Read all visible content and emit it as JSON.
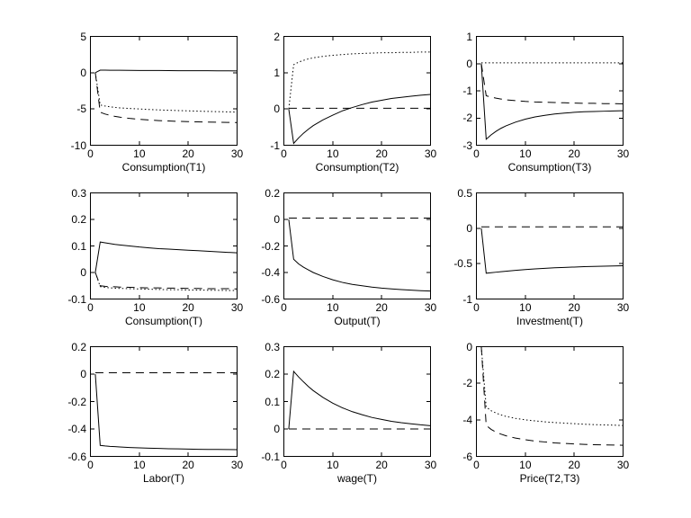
{
  "figure": {
    "background": "#ffffff",
    "line_color": "#000000",
    "layout": "3x3 grid of impulse-response line plots, MATLAB style",
    "x_axis_shared": {
      "min": 0,
      "max": 30,
      "tick_labels": [
        "0",
        "10",
        "20",
        "30"
      ]
    }
  },
  "chart_data": [
    {
      "type": "line",
      "title": "Consumption(T1)",
      "xlabel": "Consumption(T1)",
      "xlim": [
        0,
        30
      ],
      "xticks": [
        "0",
        "10",
        "20",
        "30"
      ],
      "ylim": [
        -10,
        5
      ],
      "yticks": [
        "5",
        "0",
        "-5",
        "-10"
      ],
      "legend": false,
      "series": [
        {
          "name": "solid",
          "style": "solid",
          "x": [
            1,
            2,
            3,
            4,
            5,
            6,
            8,
            10,
            12,
            14,
            16,
            18,
            20,
            22,
            24,
            26,
            28,
            30
          ],
          "y": [
            0,
            0.35,
            0.35,
            0.34,
            0.34,
            0.33,
            0.32,
            0.31,
            0.3,
            0.3,
            0.29,
            0.28,
            0.28,
            0.27,
            0.27,
            0.26,
            0.26,
            0.25
          ]
        },
        {
          "name": "dotted",
          "style": "dotted",
          "x": [
            1,
            2,
            3,
            4,
            5,
            6,
            8,
            10,
            12,
            14,
            16,
            18,
            20,
            22,
            24,
            26,
            28,
            30
          ],
          "y": [
            0,
            -4.45,
            -4.6,
            -4.7,
            -4.78,
            -4.85,
            -4.93,
            -5.0,
            -5.07,
            -5.13,
            -5.18,
            -5.22,
            -5.26,
            -5.3,
            -5.34,
            -5.37,
            -5.4,
            -5.43
          ]
        },
        {
          "name": "dashed",
          "style": "dashed",
          "x": [
            1,
            2,
            3,
            4,
            5,
            6,
            8,
            10,
            12,
            14,
            16,
            18,
            20,
            22,
            24,
            26,
            28,
            30
          ],
          "y": [
            0,
            -5.45,
            -5.7,
            -5.88,
            -6.02,
            -6.13,
            -6.3,
            -6.42,
            -6.52,
            -6.6,
            -6.66,
            -6.71,
            -6.75,
            -6.78,
            -6.81,
            -6.83,
            -6.85,
            -6.87
          ]
        }
      ]
    },
    {
      "type": "line",
      "title": "Consumption(T2)",
      "xlabel": "Consumption(T2)",
      "xlim": [
        0,
        30
      ],
      "xticks": [
        "0",
        "10",
        "20",
        "30"
      ],
      "ylim": [
        -1,
        2
      ],
      "yticks": [
        "2",
        "1",
        "0",
        "-1"
      ],
      "legend": false,
      "series": [
        {
          "name": "dotted",
          "style": "dotted",
          "x": [
            1,
            2,
            3,
            4,
            5,
            6,
            8,
            10,
            12,
            14,
            16,
            18,
            20,
            22,
            24,
            26,
            28,
            30
          ],
          "y": [
            0,
            1.22,
            1.29,
            1.34,
            1.38,
            1.41,
            1.45,
            1.48,
            1.5,
            1.52,
            1.53,
            1.54,
            1.55,
            1.55,
            1.56,
            1.56,
            1.57,
            1.57
          ]
        },
        {
          "name": "solid",
          "style": "solid",
          "x": [
            1,
            2,
            3,
            4,
            5,
            6,
            8,
            10,
            12,
            14,
            16,
            18,
            20,
            22,
            24,
            26,
            28,
            30
          ],
          "y": [
            0,
            -0.95,
            -0.8,
            -0.67,
            -0.56,
            -0.46,
            -0.3,
            -0.17,
            -0.05,
            0.04,
            0.12,
            0.19,
            0.24,
            0.29,
            0.32,
            0.35,
            0.38,
            0.4
          ]
        },
        {
          "name": "dashed",
          "style": "dashed",
          "x": [
            1,
            30
          ],
          "y": [
            0.02,
            0.02
          ]
        }
      ]
    },
    {
      "type": "line",
      "title": "Consumption(T3)",
      "xlabel": "Consumption(T3)",
      "xlim": [
        0,
        30
      ],
      "xticks": [
        "0",
        "10",
        "20",
        "30"
      ],
      "ylim": [
        -3,
        1
      ],
      "yticks": [
        "1",
        "0",
        "-1",
        "-2",
        "-3"
      ],
      "legend": false,
      "series": [
        {
          "name": "dotted",
          "style": "dotted",
          "x": [
            1,
            30
          ],
          "y": [
            0.03,
            0.03
          ]
        },
        {
          "name": "dashed",
          "style": "dashed",
          "x": [
            1,
            2,
            3,
            4,
            5,
            6,
            8,
            10,
            12,
            14,
            16,
            18,
            20,
            22,
            24,
            26,
            28,
            30
          ],
          "y": [
            0,
            -1.18,
            -1.23,
            -1.27,
            -1.3,
            -1.33,
            -1.36,
            -1.39,
            -1.41,
            -1.42,
            -1.43,
            -1.44,
            -1.45,
            -1.46,
            -1.46,
            -1.47,
            -1.47,
            -1.48
          ]
        },
        {
          "name": "solid",
          "style": "solid",
          "x": [
            1,
            2,
            3,
            4,
            5,
            6,
            8,
            10,
            12,
            14,
            16,
            18,
            20,
            22,
            24,
            26,
            28,
            30
          ],
          "y": [
            0,
            -2.78,
            -2.62,
            -2.49,
            -2.38,
            -2.29,
            -2.15,
            -2.04,
            -1.96,
            -1.9,
            -1.85,
            -1.82,
            -1.79,
            -1.77,
            -1.76,
            -1.75,
            -1.74,
            -1.73
          ]
        }
      ]
    },
    {
      "type": "line",
      "title": "Consumption(T)",
      "xlabel": "Consumption(T)",
      "xlim": [
        0,
        30
      ],
      "xticks": [
        "0",
        "10",
        "20",
        "30"
      ],
      "ylim": [
        -0.1,
        0.3
      ],
      "yticks": [
        "0.3",
        "0.2",
        "0.1",
        "0",
        "-0.1"
      ],
      "legend": false,
      "series": [
        {
          "name": "solid",
          "style": "solid",
          "x": [
            1,
            2,
            3,
            4,
            5,
            6,
            8,
            10,
            12,
            14,
            16,
            18,
            20,
            22,
            24,
            26,
            28,
            30
          ],
          "y": [
            0,
            0.115,
            0.112,
            0.109,
            0.106,
            0.104,
            0.1,
            0.096,
            0.093,
            0.09,
            0.088,
            0.086,
            0.084,
            0.082,
            0.08,
            0.078,
            0.076,
            0.074
          ]
        },
        {
          "name": "dashed",
          "style": "dashed",
          "x": [
            1,
            2,
            3,
            4,
            5,
            6,
            8,
            10,
            12,
            14,
            16,
            18,
            20,
            22,
            24,
            26,
            28,
            30
          ],
          "y": [
            0,
            -0.05,
            -0.052,
            -0.053,
            -0.054,
            -0.055,
            -0.056,
            -0.057,
            -0.058,
            -0.058,
            -0.059,
            -0.059,
            -0.06,
            -0.06,
            -0.061,
            -0.061,
            -0.061,
            -0.062
          ]
        },
        {
          "name": "dotted",
          "style": "dotted",
          "x": [
            1,
            2,
            3,
            4,
            5,
            6,
            8,
            10,
            12,
            14,
            16,
            18,
            20,
            22,
            24,
            26,
            28,
            30
          ],
          "y": [
            0,
            -0.053,
            -0.056,
            -0.058,
            -0.059,
            -0.06,
            -0.061,
            -0.062,
            -0.063,
            -0.064,
            -0.065,
            -0.065,
            -0.066,
            -0.066,
            -0.067,
            -0.067,
            -0.068,
            -0.068
          ]
        }
      ]
    },
    {
      "type": "line",
      "title": "Output(T)",
      "xlabel": "Output(T)",
      "xlim": [
        0,
        30
      ],
      "xticks": [
        "0",
        "10",
        "20",
        "30"
      ],
      "ylim": [
        -0.6,
        0.2
      ],
      "yticks": [
        "0.2",
        "0",
        "-0.2",
        "-0.4",
        "-0.6"
      ],
      "legend": false,
      "series": [
        {
          "name": "dashed",
          "style": "dashed",
          "x": [
            1,
            30
          ],
          "y": [
            0.01,
            0.01
          ]
        },
        {
          "name": "solid",
          "style": "solid",
          "x": [
            1,
            2,
            3,
            4,
            5,
            6,
            8,
            10,
            12,
            14,
            16,
            18,
            20,
            22,
            24,
            26,
            28,
            30
          ],
          "y": [
            0,
            -0.3,
            -0.335,
            -0.36,
            -0.38,
            -0.4,
            -0.43,
            -0.455,
            -0.475,
            -0.49,
            -0.5,
            -0.51,
            -0.518,
            -0.524,
            -0.529,
            -0.533,
            -0.537,
            -0.54
          ]
        }
      ]
    },
    {
      "type": "line",
      "title": "Investment(T)",
      "xlabel": "Investment(T)",
      "xlim": [
        0,
        30
      ],
      "xticks": [
        "0",
        "10",
        "20",
        "30"
      ],
      "ylim": [
        -1,
        0.5
      ],
      "yticks": [
        "0.5",
        "0",
        "-0.5",
        "-1"
      ],
      "legend": false,
      "series": [
        {
          "name": "dashed",
          "style": "dashed",
          "x": [
            1,
            30
          ],
          "y": [
            0.02,
            0.02
          ]
        },
        {
          "name": "solid",
          "style": "solid",
          "x": [
            1,
            2,
            3,
            4,
            5,
            6,
            8,
            10,
            12,
            14,
            16,
            18,
            20,
            22,
            24,
            26,
            28,
            30
          ],
          "y": [
            0,
            -0.635,
            -0.628,
            -0.621,
            -0.614,
            -0.607,
            -0.595,
            -0.584,
            -0.574,
            -0.566,
            -0.559,
            -0.553,
            -0.548,
            -0.543,
            -0.539,
            -0.536,
            -0.533,
            -0.53
          ]
        }
      ]
    },
    {
      "type": "line",
      "title": "Labor(T)",
      "xlabel": "Labor(T)",
      "xlim": [
        0,
        30
      ],
      "xticks": [
        "0",
        "10",
        "20",
        "30"
      ],
      "ylim": [
        -0.6,
        0.2
      ],
      "yticks": [
        "0.2",
        "0",
        "-0.2",
        "-0.4",
        "-0.6"
      ],
      "legend": false,
      "series": [
        {
          "name": "dashed",
          "style": "dashed",
          "x": [
            1,
            30
          ],
          "y": [
            0.01,
            0.01
          ]
        },
        {
          "name": "solid",
          "style": "solid",
          "x": [
            1,
            2,
            3,
            4,
            5,
            6,
            8,
            10,
            12,
            14,
            16,
            18,
            20,
            22,
            24,
            26,
            28,
            30
          ],
          "y": [
            0,
            -0.52,
            -0.524,
            -0.527,
            -0.529,
            -0.531,
            -0.535,
            -0.538,
            -0.54,
            -0.542,
            -0.544,
            -0.545,
            -0.547,
            -0.548,
            -0.549,
            -0.549,
            -0.55,
            -0.551
          ]
        }
      ]
    },
    {
      "type": "line",
      "title": "wage(T)",
      "xlabel": "wage(T)",
      "xlim": [
        0,
        30
      ],
      "xticks": [
        "0",
        "10",
        "20",
        "30"
      ],
      "ylim": [
        -0.1,
        0.3
      ],
      "yticks": [
        "0.3",
        "0.2",
        "0.1",
        "0",
        "-0.1"
      ],
      "legend": false,
      "series": [
        {
          "name": "solid",
          "style": "solid",
          "x": [
            1,
            2,
            3,
            4,
            5,
            6,
            8,
            10,
            12,
            14,
            16,
            18,
            20,
            22,
            24,
            26,
            28,
            30
          ],
          "y": [
            0,
            0.21,
            0.19,
            0.172,
            0.155,
            0.14,
            0.115,
            0.094,
            0.077,
            0.063,
            0.052,
            0.042,
            0.035,
            0.028,
            0.023,
            0.019,
            0.015,
            0.012
          ]
        },
        {
          "name": "dashed",
          "style": "dashed",
          "x": [
            1,
            30
          ],
          "y": [
            0,
            0
          ]
        }
      ]
    },
    {
      "type": "line",
      "title": "Price(T2,T3)",
      "xlabel": "Price(T2,T3)",
      "xlim": [
        0,
        30
      ],
      "xticks": [
        "0",
        "10",
        "20",
        "30"
      ],
      "ylim": [
        -6,
        0
      ],
      "yticks": [
        "0",
        "-2",
        "-4",
        "-6"
      ],
      "legend": false,
      "series": [
        {
          "name": "dotted",
          "style": "dotted",
          "x": [
            1,
            2,
            3,
            4,
            5,
            6,
            8,
            10,
            12,
            14,
            16,
            18,
            20,
            22,
            24,
            26,
            28,
            30
          ],
          "y": [
            0,
            -3.3,
            -3.5,
            -3.63,
            -3.73,
            -3.81,
            -3.92,
            -4.0,
            -4.06,
            -4.11,
            -4.15,
            -4.18,
            -4.21,
            -4.24,
            -4.26,
            -4.28,
            -4.29,
            -4.31
          ]
        },
        {
          "name": "dashed",
          "style": "dashed",
          "x": [
            1,
            2,
            3,
            4,
            5,
            6,
            8,
            10,
            12,
            14,
            16,
            18,
            20,
            22,
            24,
            26,
            28,
            30
          ],
          "y": [
            0,
            -4.3,
            -4.52,
            -4.67,
            -4.78,
            -4.87,
            -5.0,
            -5.09,
            -5.16,
            -5.21,
            -5.26,
            -5.29,
            -5.32,
            -5.34,
            -5.36,
            -5.37,
            -5.38,
            -5.39
          ]
        }
      ]
    }
  ]
}
